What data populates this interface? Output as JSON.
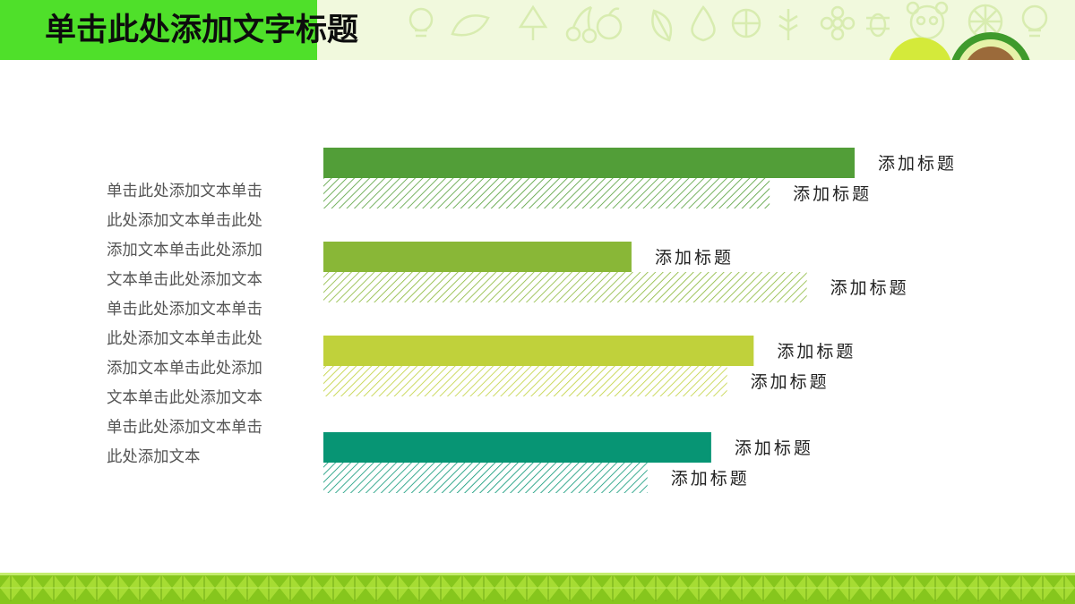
{
  "header": {
    "title": "单击此处添加文字标题",
    "accent_color": "#4fe02a"
  },
  "body_text": {
    "lines": [
      "单击此处添加文本单击",
      "此处添加文本单击此处",
      "添加文本单击此处添加",
      "文本单击此处添加文本",
      "单击此处添加文本单击",
      "此处添加文本单击此处",
      "添加文本单击此处添加",
      "文本单击此处添加文本",
      "单击此处添加文本单击",
      "此处添加文本"
    ]
  },
  "chart_data": {
    "type": "bar",
    "orientation": "horizontal",
    "xlim": [
      0,
      100
    ],
    "grid": false,
    "legend": "none",
    "groups": [
      {
        "color": "#529e38",
        "bars": [
          {
            "label": "添加标题",
            "value": 100,
            "style": "solid"
          },
          {
            "label": "添加标题",
            "value": 84,
            "style": "hatched"
          }
        ]
      },
      {
        "color": "#89b737",
        "bars": [
          {
            "label": "添加标题",
            "value": 58,
            "style": "solid"
          },
          {
            "label": "添加标题",
            "value": 91,
            "style": "hatched"
          }
        ]
      },
      {
        "color": "#c0d13b",
        "bars": [
          {
            "label": "添加标题",
            "value": 81,
            "style": "solid"
          },
          {
            "label": "添加标题",
            "value": 76,
            "style": "hatched"
          }
        ]
      },
      {
        "color": "#079574",
        "bars": [
          {
            "label": "添加标题",
            "value": 73,
            "style": "solid"
          },
          {
            "label": "添加标题",
            "value": 61,
            "style": "hatched"
          }
        ]
      }
    ]
  },
  "decor": {
    "footer_color": "#86c61d",
    "icons": [
      "panda-icon",
      "leaf-icon",
      "apple-icon",
      "fruit-slice-icon",
      "lightbulb-icon"
    ]
  }
}
